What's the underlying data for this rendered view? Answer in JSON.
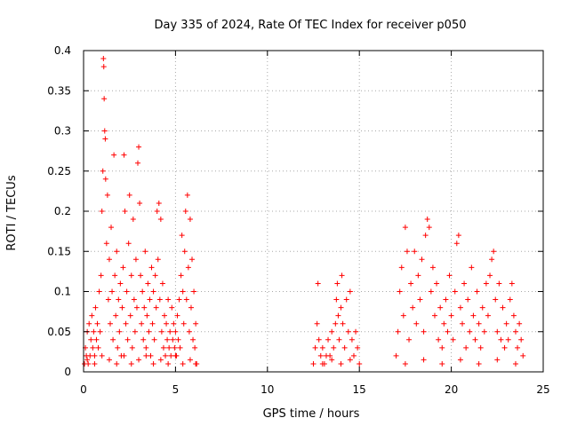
{
  "chart_data": {
    "type": "scatter",
    "title": "Day 335 of 2024, Rate Of TEC Index for receiver p050",
    "xlabel": "GPS time / hours",
    "ylabel": "ROTI / TECUs",
    "xlim": [
      0,
      25
    ],
    "ylim": [
      0,
      0.4
    ],
    "xticks": [
      "0",
      "5",
      "10",
      "15",
      "20",
      "25"
    ],
    "yticks": [
      "0",
      "0.05",
      "0.1",
      "0.15",
      "0.2",
      "0.25",
      "0.3",
      "0.35",
      "0.4"
    ],
    "grid": true,
    "marker": "+",
    "color": "#ff0000",
    "series": [
      {
        "points": [
          [
            0.05,
            0.01
          ],
          [
            0.1,
            0.03
          ],
          [
            0.15,
            0.02
          ],
          [
            0.2,
            0.05
          ],
          [
            0.25,
            0.01
          ],
          [
            0.3,
            0.06
          ],
          [
            0.35,
            0.02
          ],
          [
            0.4,
            0.04
          ],
          [
            0.45,
            0.07
          ],
          [
            0.5,
            0.03
          ],
          [
            0.55,
            0.05
          ],
          [
            0.6,
            0.02
          ],
          [
            0.65,
            0.08
          ],
          [
            0.7,
            0.04
          ],
          [
            0.75,
            0.06
          ],
          [
            0.8,
            0.03
          ],
          [
            0.85,
            0.1
          ],
          [
            0.9,
            0.05
          ],
          [
            0.95,
            0.12
          ],
          [
            1.0,
            0.2
          ],
          [
            1.05,
            0.25
          ],
          [
            1.08,
            0.39
          ],
          [
            1.1,
            0.38
          ],
          [
            1.12,
            0.34
          ],
          [
            1.15,
            0.3
          ],
          [
            1.18,
            0.29
          ],
          [
            1.2,
            0.24
          ],
          [
            1.25,
            0.16
          ],
          [
            1.3,
            0.22
          ],
          [
            1.35,
            0.09
          ],
          [
            1.4,
            0.14
          ],
          [
            1.45,
            0.06
          ],
          [
            1.5,
            0.18
          ],
          [
            1.55,
            0.1
          ],
          [
            1.6,
            0.04
          ],
          [
            1.65,
            0.27
          ],
          [
            1.7,
            0.12
          ],
          [
            1.75,
            0.07
          ],
          [
            1.8,
            0.15
          ],
          [
            1.85,
            0.03
          ],
          [
            1.9,
            0.09
          ],
          [
            1.95,
            0.05
          ],
          [
            2.0,
            0.11
          ],
          [
            2.05,
            0.02
          ],
          [
            2.1,
            0.08
          ],
          [
            2.15,
            0.13
          ],
          [
            2.2,
            0.27
          ],
          [
            2.25,
            0.2
          ],
          [
            2.3,
            0.06
          ],
          [
            2.35,
            0.1
          ],
          [
            2.4,
            0.04
          ],
          [
            2.45,
            0.16
          ],
          [
            2.5,
            0.22
          ],
          [
            2.55,
            0.07
          ],
          [
            2.6,
            0.12
          ],
          [
            2.65,
            0.03
          ],
          [
            2.7,
            0.19
          ],
          [
            2.75,
            0.09
          ],
          [
            2.8,
            0.05
          ],
          [
            2.85,
            0.14
          ],
          [
            2.9,
            0.08
          ],
          [
            2.95,
            0.26
          ],
          [
            3.0,
            0.28
          ],
          [
            3.05,
            0.21
          ],
          [
            3.1,
            0.12
          ],
          [
            3.15,
            0.06
          ],
          [
            3.2,
            0.1
          ],
          [
            3.25,
            0.04
          ],
          [
            3.3,
            0.08
          ],
          [
            3.35,
            0.15
          ],
          [
            3.4,
            0.03
          ],
          [
            3.45,
            0.07
          ],
          [
            3.5,
            0.11
          ],
          [
            3.55,
            0.05
          ],
          [
            3.6,
            0.09
          ],
          [
            3.65,
            0.02
          ],
          [
            3.7,
            0.13
          ],
          [
            3.75,
            0.06
          ],
          [
            3.8,
            0.1
          ],
          [
            3.85,
            0.04
          ],
          [
            3.9,
            0.12
          ],
          [
            3.95,
            0.08
          ],
          [
            4.0,
            0.2
          ],
          [
            4.05,
            0.14
          ],
          [
            4.1,
            0.21
          ],
          [
            4.15,
            0.09
          ],
          [
            4.2,
            0.19
          ],
          [
            4.25,
            0.05
          ],
          [
            4.3,
            0.11
          ],
          [
            4.35,
            0.03
          ],
          [
            4.4,
            0.07
          ],
          [
            4.45,
            0.02
          ],
          [
            4.5,
            0.06
          ],
          [
            4.55,
            0.04
          ],
          [
            4.6,
            0.09
          ],
          [
            4.65,
            0.03
          ],
          [
            4.7,
            0.05
          ],
          [
            4.75,
            0.02
          ],
          [
            4.8,
            0.08
          ],
          [
            4.85,
            0.04
          ],
          [
            4.9,
            0.06
          ],
          [
            4.95,
            0.03
          ],
          [
            5.0,
            0.05
          ],
          [
            5.05,
            0.02
          ],
          [
            5.1,
            0.07
          ],
          [
            5.15,
            0.04
          ],
          [
            5.2,
            0.09
          ],
          [
            5.25,
            0.03
          ],
          [
            5.3,
            0.12
          ],
          [
            5.35,
            0.17
          ],
          [
            5.4,
            0.1
          ],
          [
            5.45,
            0.06
          ],
          [
            5.5,
            0.15
          ],
          [
            5.55,
            0.2
          ],
          [
            5.6,
            0.09
          ],
          [
            5.65,
            0.22
          ],
          [
            5.7,
            0.13
          ],
          [
            5.75,
            0.05
          ],
          [
            5.8,
            0.19
          ],
          [
            5.85,
            0.08
          ],
          [
            5.9,
            0.14
          ],
          [
            5.95,
            0.04
          ],
          [
            6.0,
            0.1
          ],
          [
            6.05,
            0.03
          ],
          [
            6.1,
            0.06
          ],
          [
            6.15,
            0.01
          ],
          [
            0.2,
            0.015
          ],
          [
            0.6,
            0.01
          ],
          [
            1.0,
            0.02
          ],
          [
            1.4,
            0.015
          ],
          [
            1.8,
            0.01
          ],
          [
            2.2,
            0.02
          ],
          [
            2.6,
            0.01
          ],
          [
            3.0,
            0.015
          ],
          [
            3.4,
            0.02
          ],
          [
            3.8,
            0.01
          ],
          [
            4.2,
            0.015
          ],
          [
            4.6,
            0.01
          ],
          [
            5.0,
            0.02
          ],
          [
            5.4,
            0.01
          ],
          [
            5.8,
            0.015
          ],
          [
            6.1,
            0.01
          ],
          [
            12.5,
            0.01
          ],
          [
            12.6,
            0.03
          ],
          [
            12.7,
            0.06
          ],
          [
            12.75,
            0.11
          ],
          [
            12.8,
            0.04
          ],
          [
            12.9,
            0.02
          ],
          [
            13.0,
            0.03
          ],
          [
            13.1,
            0.01
          ],
          [
            13.2,
            0.02
          ],
          [
            13.3,
            0.04
          ],
          [
            13.4,
            0.02
          ],
          [
            13.5,
            0.05
          ],
          [
            13.6,
            0.03
          ],
          [
            13.7,
            0.06
          ],
          [
            13.75,
            0.09
          ],
          [
            13.8,
            0.11
          ],
          [
            13.85,
            0.07
          ],
          [
            13.9,
            0.04
          ],
          [
            14.0,
            0.08
          ],
          [
            14.05,
            0.12
          ],
          [
            14.1,
            0.06
          ],
          [
            14.2,
            0.03
          ],
          [
            14.3,
            0.09
          ],
          [
            14.4,
            0.05
          ],
          [
            14.5,
            0.1
          ],
          [
            14.6,
            0.04
          ],
          [
            14.7,
            0.02
          ],
          [
            14.8,
            0.05
          ],
          [
            14.9,
            0.03
          ],
          [
            15.0,
            0.01
          ],
          [
            13.0,
            0.01
          ],
          [
            13.5,
            0.015
          ],
          [
            14.0,
            0.01
          ],
          [
            14.5,
            0.015
          ],
          [
            17.0,
            0.02
          ],
          [
            17.1,
            0.05
          ],
          [
            17.2,
            0.1
          ],
          [
            17.3,
            0.13
          ],
          [
            17.4,
            0.07
          ],
          [
            17.5,
            0.18
          ],
          [
            17.6,
            0.15
          ],
          [
            17.7,
            0.04
          ],
          [
            17.8,
            0.11
          ],
          [
            17.9,
            0.08
          ],
          [
            18.0,
            0.15
          ],
          [
            18.1,
            0.06
          ],
          [
            18.2,
            0.12
          ],
          [
            18.3,
            0.09
          ],
          [
            18.4,
            0.14
          ],
          [
            18.5,
            0.05
          ],
          [
            18.6,
            0.17
          ],
          [
            18.7,
            0.19
          ],
          [
            18.8,
            0.18
          ],
          [
            18.9,
            0.1
          ],
          [
            19.0,
            0.13
          ],
          [
            19.1,
            0.07
          ],
          [
            19.2,
            0.11
          ],
          [
            19.3,
            0.04
          ],
          [
            19.4,
            0.08
          ],
          [
            19.5,
            0.03
          ],
          [
            19.6,
            0.06
          ],
          [
            19.7,
            0.09
          ],
          [
            19.8,
            0.05
          ],
          [
            19.9,
            0.12
          ],
          [
            20.0,
            0.07
          ],
          [
            20.1,
            0.04
          ],
          [
            20.2,
            0.1
          ],
          [
            20.3,
            0.16
          ],
          [
            20.4,
            0.17
          ],
          [
            20.5,
            0.08
          ],
          [
            20.6,
            0.06
          ],
          [
            20.7,
            0.11
          ],
          [
            20.8,
            0.03
          ],
          [
            20.9,
            0.09
          ],
          [
            21.0,
            0.05
          ],
          [
            21.1,
            0.13
          ],
          [
            21.2,
            0.07
          ],
          [
            21.3,
            0.04
          ],
          [
            21.4,
            0.1
          ],
          [
            21.5,
            0.06
          ],
          [
            21.6,
            0.03
          ],
          [
            21.7,
            0.08
          ],
          [
            21.8,
            0.05
          ],
          [
            21.9,
            0.11
          ],
          [
            22.0,
            0.07
          ],
          [
            22.1,
            0.12
          ],
          [
            22.2,
            0.14
          ],
          [
            22.3,
            0.15
          ],
          [
            22.4,
            0.09
          ],
          [
            22.5,
            0.05
          ],
          [
            22.6,
            0.11
          ],
          [
            22.7,
            0.04
          ],
          [
            22.8,
            0.08
          ],
          [
            22.9,
            0.03
          ],
          [
            23.0,
            0.06
          ],
          [
            23.1,
            0.04
          ],
          [
            23.2,
            0.09
          ],
          [
            23.3,
            0.11
          ],
          [
            23.4,
            0.07
          ],
          [
            23.5,
            0.05
          ],
          [
            23.6,
            0.03
          ],
          [
            23.7,
            0.06
          ],
          [
            23.8,
            0.04
          ],
          [
            23.9,
            0.02
          ],
          [
            17.5,
            0.01
          ],
          [
            18.5,
            0.015
          ],
          [
            19.5,
            0.01
          ],
          [
            20.5,
            0.015
          ],
          [
            21.5,
            0.01
          ],
          [
            22.5,
            0.015
          ],
          [
            23.5,
            0.01
          ]
        ]
      }
    ]
  }
}
